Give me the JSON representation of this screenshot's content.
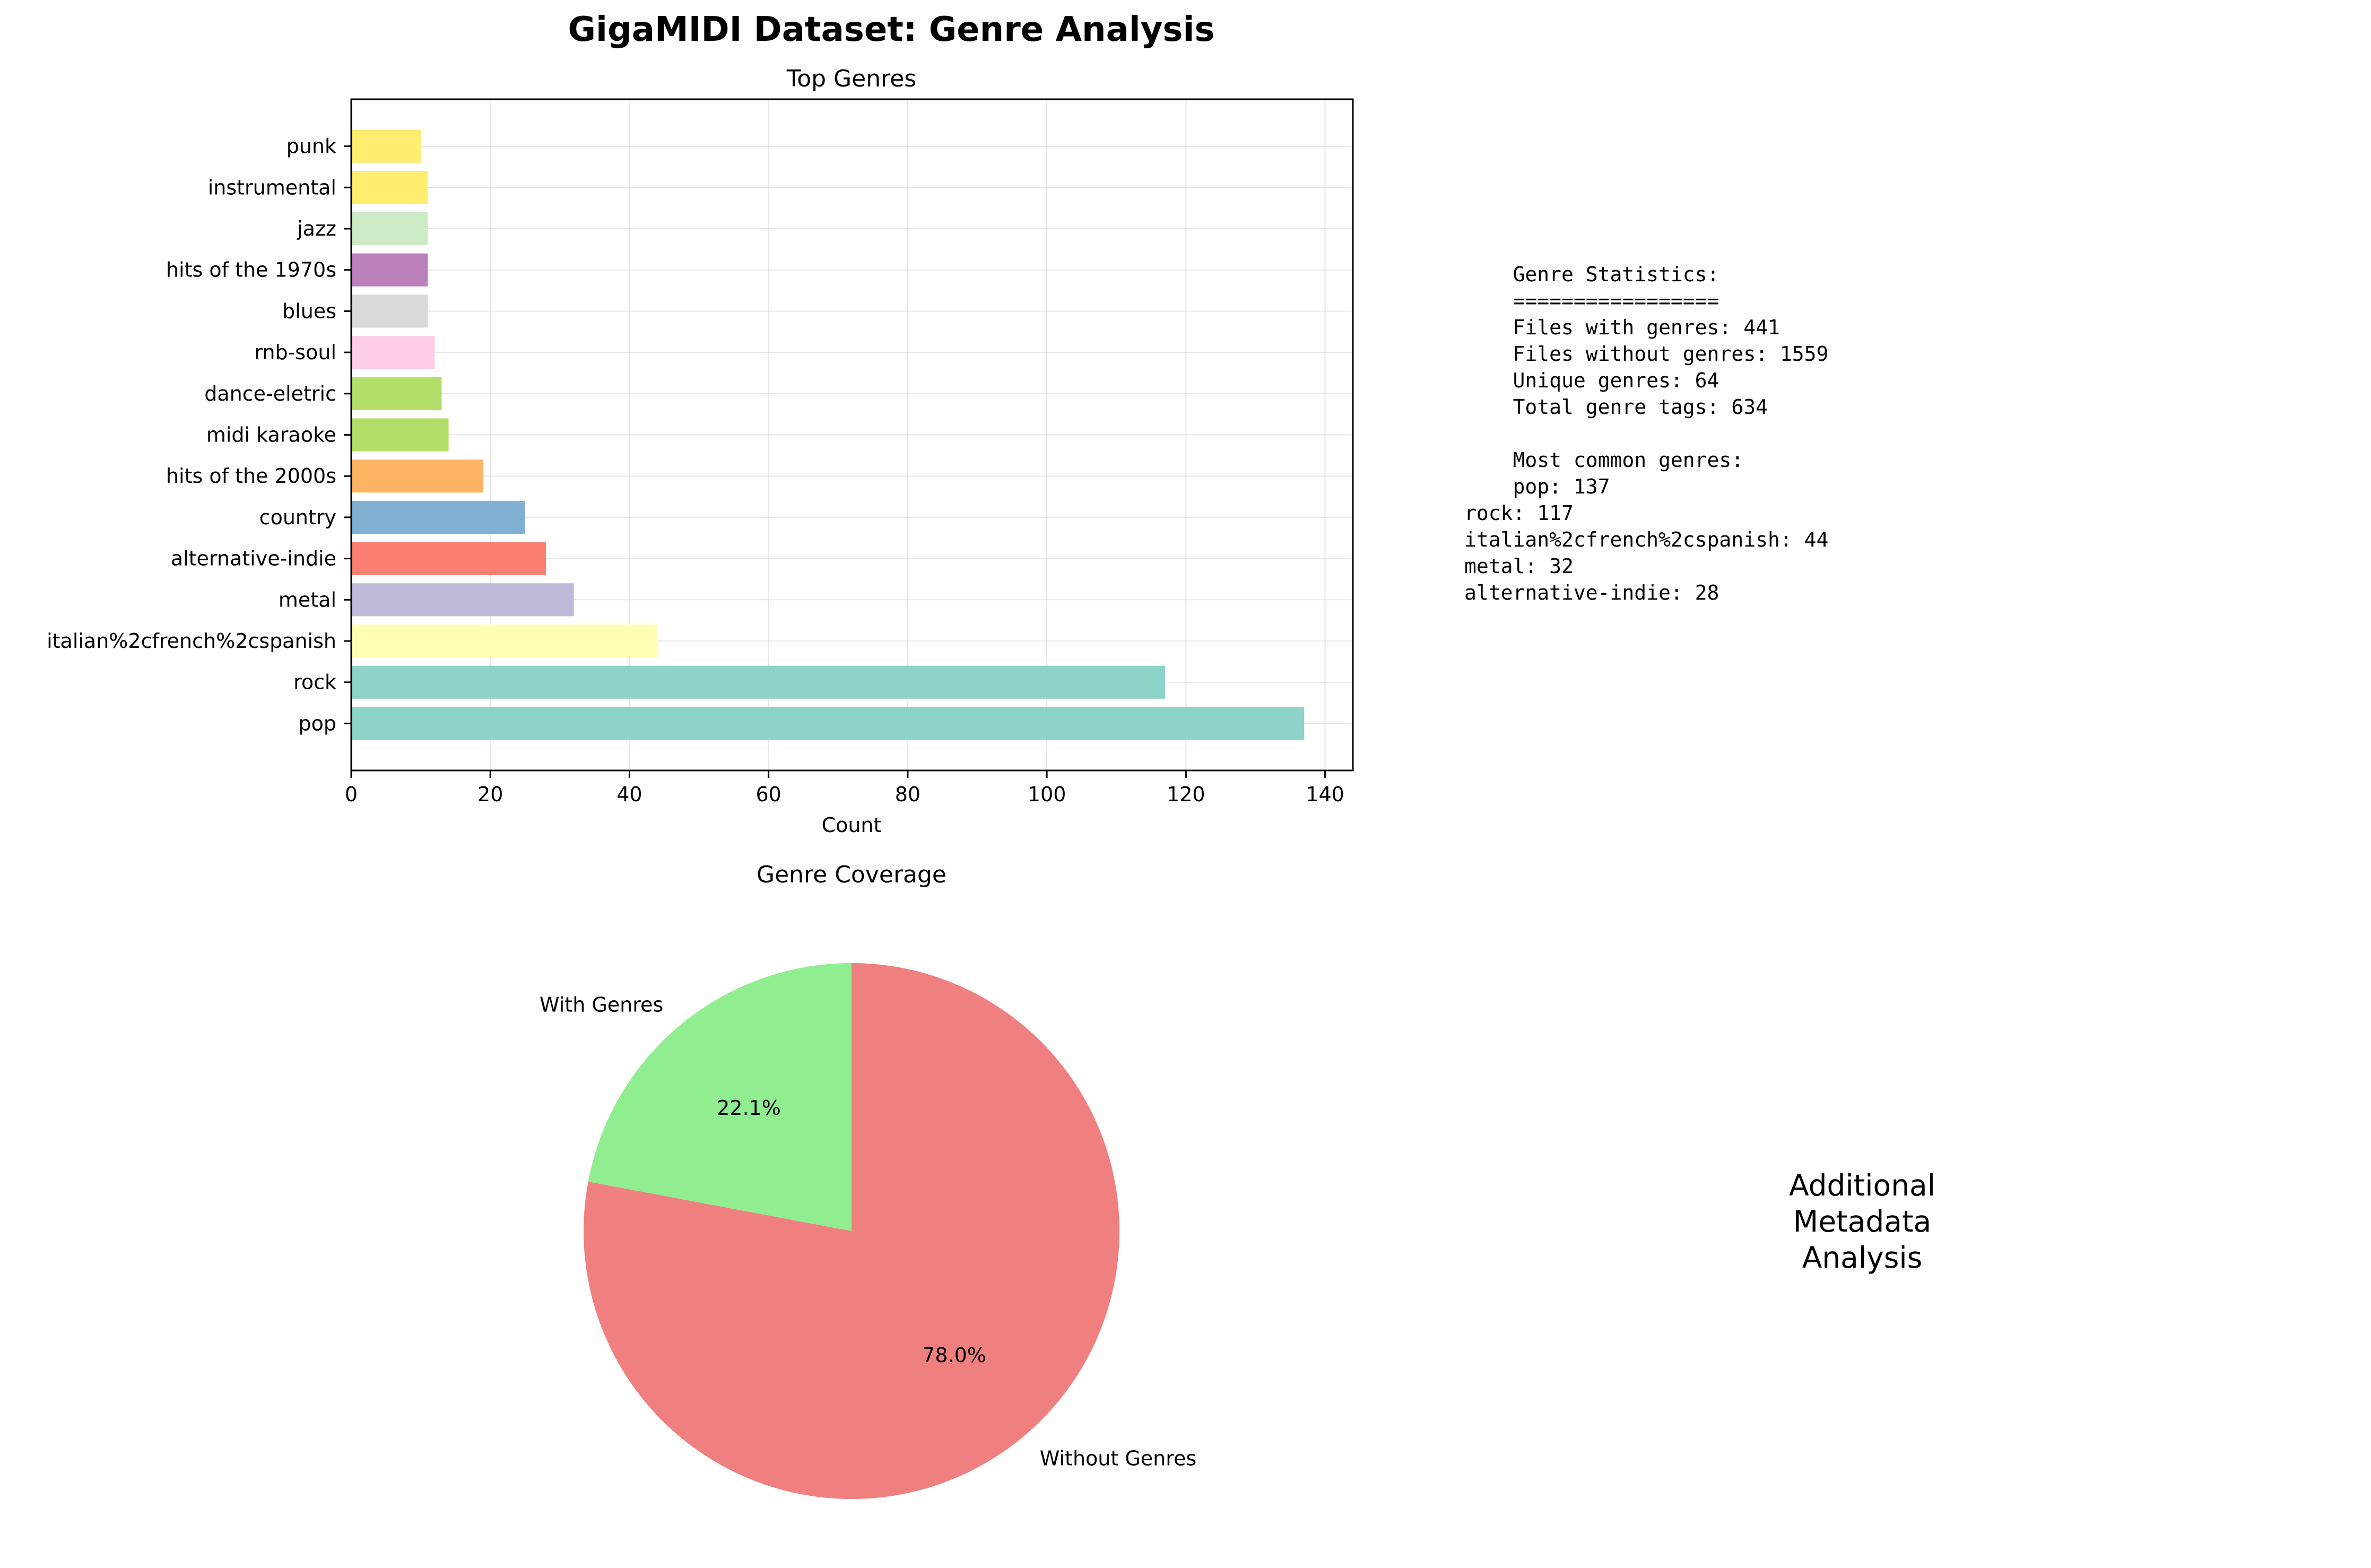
{
  "figure": {
    "title": "GigaMIDI Dataset: Genre Analysis"
  },
  "chart_data": [
    {
      "type": "bar",
      "orientation": "horizontal",
      "title": "Top Genres",
      "xlabel": "Count",
      "ylabel": "",
      "xlim": [
        0,
        144
      ],
      "xticks": [
        0,
        20,
        40,
        60,
        80,
        100,
        120,
        140
      ],
      "grid": true,
      "categories": [
        "pop",
        "rock",
        "italian%2cfrench%2cspanish",
        "metal",
        "alternative-indie",
        "country",
        "hits of the 2000s",
        "midi karaoke",
        "dance-eletric",
        "rnb-soul",
        "blues",
        "hits of the 1970s",
        "jazz",
        "instrumental",
        "punk"
      ],
      "values": [
        137,
        117,
        44,
        32,
        28,
        25,
        19,
        14,
        13,
        12,
        11,
        11,
        11,
        11,
        10
      ],
      "colors": [
        "#8dd3c7",
        "#8dd3c7",
        "#ffffb3",
        "#bebada",
        "#fb8072",
        "#80b1d3",
        "#fdb462",
        "#b3de69",
        "#b3de69",
        "#fccde5",
        "#d9d9d9",
        "#bc80bd",
        "#ccebc5",
        "#ffed6f",
        "#ffed6f"
      ]
    },
    {
      "type": "pie",
      "title": "Genre Coverage",
      "labels": [
        "With Genres",
        "Without Genres"
      ],
      "values": [
        441,
        1559
      ],
      "percent_labels": [
        "22.1%",
        "78.0%"
      ],
      "colors": [
        "#90ee90",
        "#f08080"
      ],
      "start_angle_deg": 90
    }
  ],
  "stats_panel": {
    "lines": [
      "    Genre Statistics:",
      "    =================",
      "    Files with genres: 441",
      "    Files without genres: 1559",
      "    Unique genres: 64",
      "    Total genre tags: 634",
      "",
      "    Most common genres:",
      "    pop: 137",
      "rock: 117",
      "italian%2cfrench%2cspanish: 44",
      "metal: 32",
      "alternative-indie: 28"
    ]
  },
  "side_label": "Additional\nMetadata\nAnalysis"
}
